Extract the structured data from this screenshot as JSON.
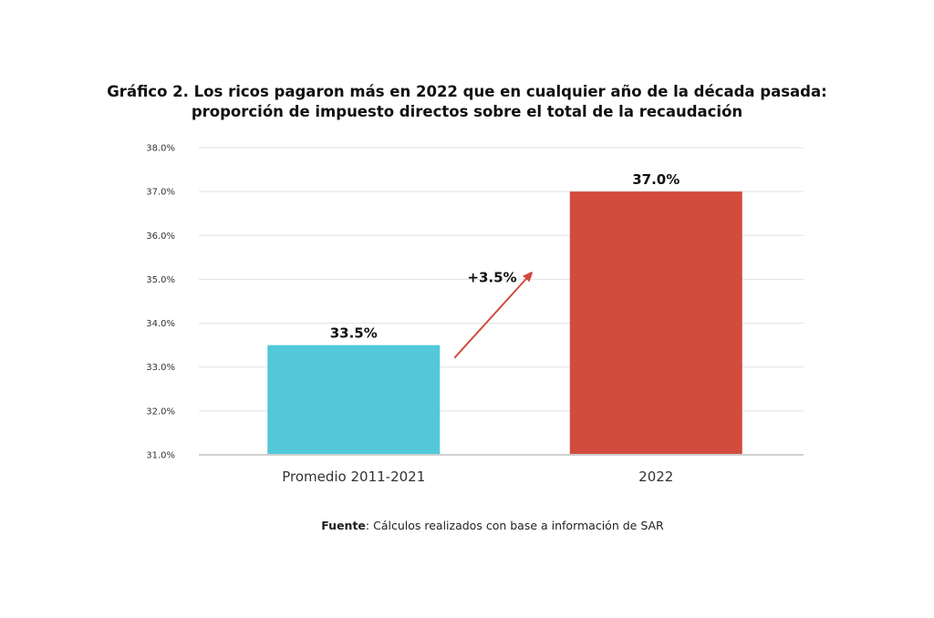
{
  "chart_data": {
    "type": "bar",
    "title_lines": [
      "Gráfico 2. Los ricos pagaron más en 2022 que en cualquier año de la década pasada:",
      "proporción de impuesto directos sobre el total de la recaudación"
    ],
    "categories": [
      "Promedio 2011-2021",
      "2022"
    ],
    "values": [
      33.5,
      37.0
    ],
    "value_labels": [
      "33.5%",
      "37.0%"
    ],
    "colors": [
      "#52c8d8",
      "#d24b3e"
    ],
    "ylim": [
      31.0,
      38.0
    ],
    "yticks": [
      31.0,
      32.0,
      33.0,
      34.0,
      35.0,
      36.0,
      37.0,
      38.0
    ],
    "ytick_labels": [
      "31.0%",
      "32.0%",
      "33.0%",
      "34.0%",
      "35.0%",
      "36.0%",
      "37.0%",
      "38.0%"
    ],
    "grid": true,
    "xlabel": "",
    "ylabel": "",
    "annotation": {
      "text": "+3.5%",
      "arrow_color": "#d24b3e",
      "from_category": 0,
      "to_category": 1
    },
    "source_label": "Fuente",
    "source_text": ": Cálculos realizados con base a información de SAR"
  }
}
